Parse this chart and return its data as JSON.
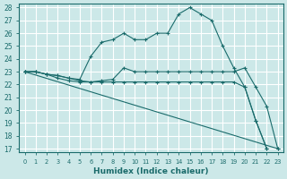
{
  "xlabel": "Humidex (Indice chaleur)",
  "background_color": "#cce8e8",
  "line_color": "#1a6b6b",
  "grid_color": "#ffffff",
  "xlim": [
    -0.5,
    23.5
  ],
  "ylim": [
    16.7,
    28.3
  ],
  "xticks": [
    0,
    1,
    2,
    3,
    4,
    5,
    6,
    7,
    8,
    9,
    10,
    11,
    12,
    13,
    14,
    15,
    16,
    17,
    18,
    19,
    20,
    21,
    22,
    23
  ],
  "yticks": [
    17,
    18,
    19,
    20,
    21,
    22,
    23,
    24,
    25,
    26,
    27,
    28
  ],
  "series": [
    {
      "x": [
        0,
        1,
        2,
        3,
        4,
        5,
        6,
        7,
        8,
        9,
        10,
        11,
        12,
        13,
        14,
        15,
        16,
        17,
        18,
        19,
        20,
        21,
        22
      ],
      "y": [
        23,
        23,
        22.8,
        22.7,
        22.5,
        22.4,
        24.2,
        25.3,
        25.5,
        26.0,
        25.5,
        25.5,
        26.0,
        26.0,
        27.5,
        28.0,
        27.5,
        27.0,
        25.0,
        23.3,
        21.8,
        19.2,
        17.0
      ]
    },
    {
      "x": [
        0,
        1,
        2,
        3,
        4,
        5,
        6,
        7,
        8,
        9,
        10,
        11,
        12,
        13,
        14,
        15,
        16,
        17,
        18,
        19,
        20,
        21,
        22,
        23
      ],
      "y": [
        23,
        23,
        22.8,
        22.7,
        22.5,
        22.3,
        22.2,
        22.3,
        22.4,
        23.3,
        23.0,
        23.0,
        23.0,
        23.0,
        23.0,
        23.0,
        23.0,
        23.0,
        23.0,
        23.0,
        23.3,
        21.8,
        20.3,
        17.0
      ]
    },
    {
      "x": [
        0,
        1,
        2,
        3,
        4,
        5,
        6,
        7,
        8,
        9,
        10,
        11,
        12,
        13,
        14,
        15,
        16,
        17,
        18,
        19,
        20,
        21,
        22
      ],
      "y": [
        23,
        23,
        22.8,
        22.5,
        22.3,
        22.2,
        22.2,
        22.2,
        22.2,
        22.2,
        22.2,
        22.2,
        22.2,
        22.2,
        22.2,
        22.2,
        22.2,
        22.2,
        22.2,
        22.2,
        21.8,
        19.2,
        17.0
      ]
    },
    {
      "x": [
        0,
        23
      ],
      "y": [
        23,
        17
      ]
    }
  ]
}
